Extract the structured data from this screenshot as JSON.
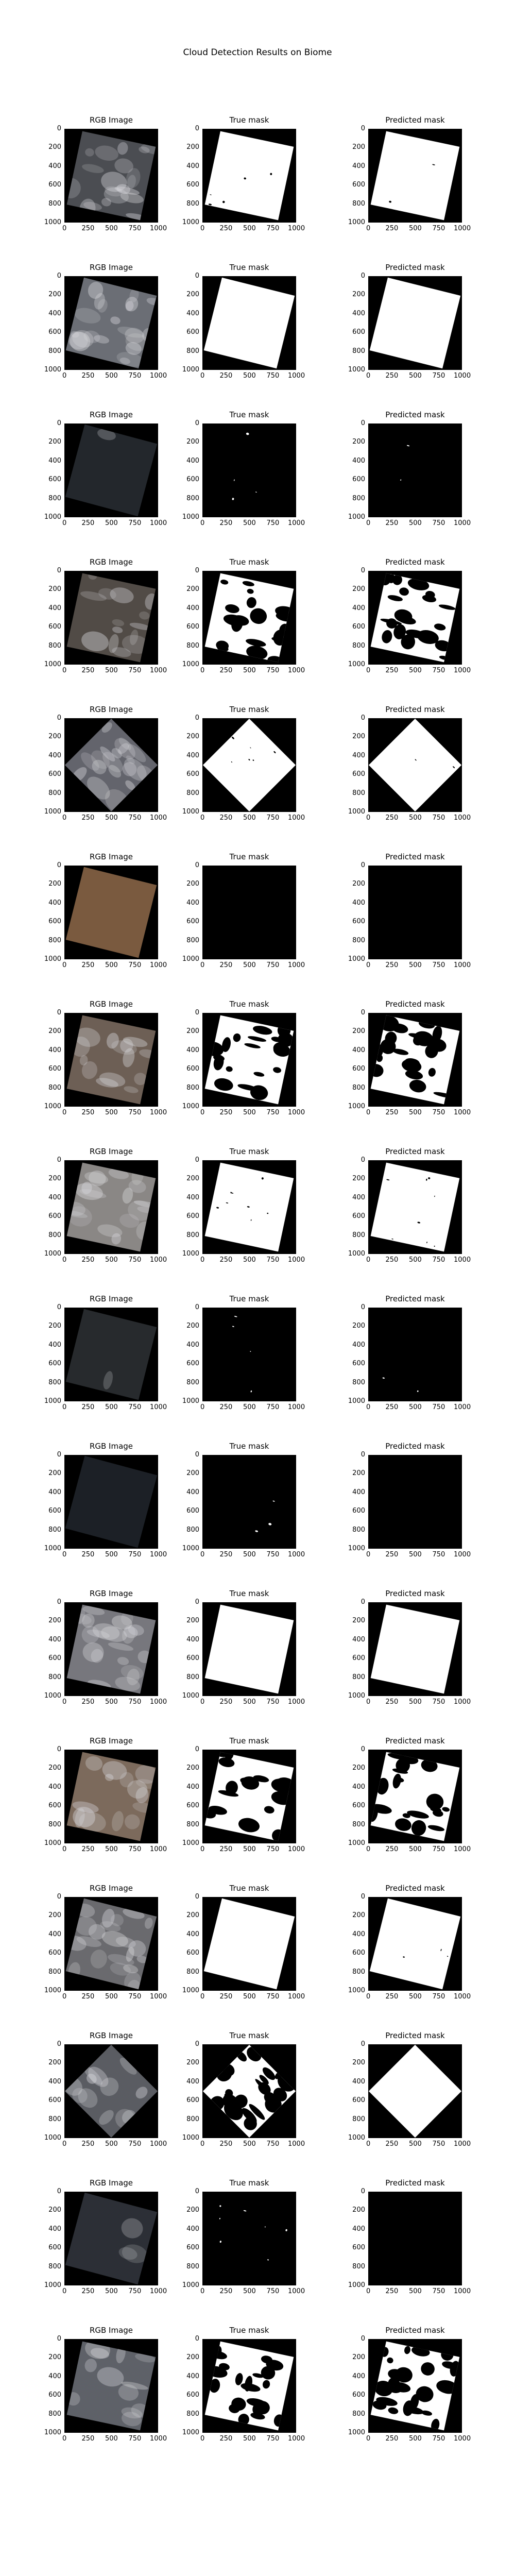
{
  "figure": {
    "title": "Cloud Detection Results on Biome"
  },
  "panel_titles": [
    "RGB Image",
    "True mask",
    "Predicted mask"
  ],
  "colors": {
    "background": "#000000",
    "cloud": "#ffffff",
    "frame": "#000000"
  },
  "chart_data": {
    "type": "image-grid",
    "title": "Cloud Detection Results on Biome",
    "rows": 16,
    "columns": [
      "RGB Image",
      "True mask",
      "Predicted mask"
    ],
    "xticks": [
      0,
      250,
      500,
      750,
      1000
    ],
    "yticks": [
      0,
      200,
      400,
      600,
      800,
      1000
    ],
    "xlim": [
      0,
      1000
    ],
    "ylim": [
      1000,
      0
    ],
    "samples": [
      {
        "scene_rotation_deg": 12,
        "rgb_tone": "#4b4d52",
        "true_cloud_fraction": 0.93,
        "pred_cloud_fraction": 0.99
      },
      {
        "scene_rotation_deg": 14,
        "rgb_tone": "#6b6e75",
        "true_cloud_fraction": 1.0,
        "pred_cloud_fraction": 1.0
      },
      {
        "scene_rotation_deg": 15,
        "rgb_tone": "#23272c",
        "true_cloud_fraction": 0.05,
        "pred_cloud_fraction": 0.01
      },
      {
        "scene_rotation_deg": 12,
        "rgb_tone": "#514b46",
        "true_cloud_fraction": 0.62,
        "pred_cloud_fraction": 0.55
      },
      {
        "scene_rotation_deg": 45,
        "rgb_tone": "#63646c",
        "true_cloud_fraction": 0.9,
        "pred_cloud_fraction": 0.99
      },
      {
        "scene_rotation_deg": 14,
        "rgb_tone": "#7a5a3f",
        "true_cloud_fraction": 0.0,
        "pred_cloud_fraction": 0.0
      },
      {
        "scene_rotation_deg": 12,
        "rgb_tone": "#6d5f55",
        "true_cloud_fraction": 0.62,
        "pred_cloud_fraction": 0.57
      },
      {
        "scene_rotation_deg": 12,
        "rgb_tone": "#8a8785",
        "true_cloud_fraction": 0.86,
        "pred_cloud_fraction": 0.86
      },
      {
        "scene_rotation_deg": 14,
        "rgb_tone": "#272a2d",
        "true_cloud_fraction": 0.04,
        "pred_cloud_fraction": 0.01
      },
      {
        "scene_rotation_deg": 15,
        "rgb_tone": "#1c2026",
        "true_cloud_fraction": 0.02,
        "pred_cloud_fraction": 0.0
      },
      {
        "scene_rotation_deg": 12,
        "rgb_tone": "#77777d",
        "true_cloud_fraction": 1.0,
        "pred_cloud_fraction": 1.0
      },
      {
        "scene_rotation_deg": 12,
        "rgb_tone": "#7c6a5c",
        "true_cloud_fraction": 0.68,
        "pred_cloud_fraction": 0.62
      },
      {
        "scene_rotation_deg": 14,
        "rgb_tone": "#6a6a6e",
        "true_cloud_fraction": 1.0,
        "pred_cloud_fraction": 0.98
      },
      {
        "scene_rotation_deg": 45,
        "rgb_tone": "#5a5c62",
        "true_cloud_fraction": 0.55,
        "pred_cloud_fraction": 1.0
      },
      {
        "scene_rotation_deg": 15,
        "rgb_tone": "#2c2f36",
        "true_cloud_fraction": 0.12,
        "pred_cloud_fraction": 0.0
      },
      {
        "scene_rotation_deg": 12,
        "rgb_tone": "#5e6168",
        "true_cloud_fraction": 0.55,
        "pred_cloud_fraction": 0.5
      }
    ]
  }
}
